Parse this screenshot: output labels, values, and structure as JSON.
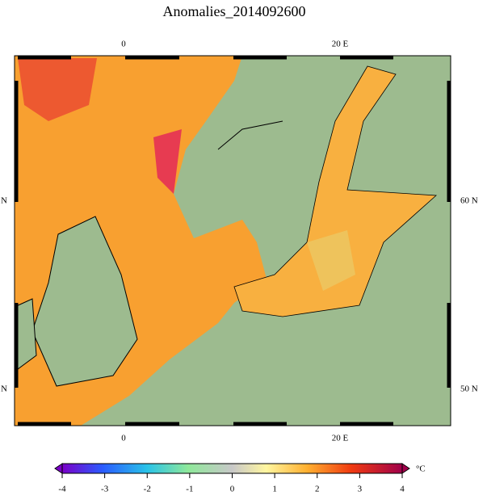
{
  "title": "Anomalies_2014092600",
  "map": {
    "top_lon_labels": [
      "0",
      "20 E"
    ],
    "bottom_lon_labels": [
      "0",
      "20 E"
    ],
    "left_lat_labels": [
      "N",
      "N"
    ],
    "right_lat_labels": [
      "60 N",
      "50 N"
    ]
  },
  "colorbar": {
    "ticks": [
      -4,
      -3,
      -2,
      -1,
      0,
      1,
      2,
      3,
      4
    ],
    "unit": "°C"
  }
}
